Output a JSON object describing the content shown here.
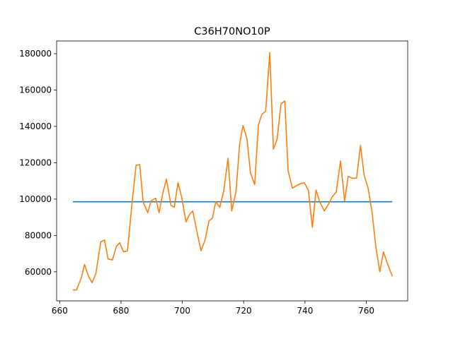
{
  "chart_data": {
    "type": "line",
    "title": "C36H70NO10P",
    "xlabel": "",
    "ylabel": "",
    "xlim": [
      659.0,
      773.5
    ],
    "ylim": [
      44000,
      187000
    ],
    "x_ticks": [
      660,
      680,
      700,
      720,
      740,
      760
    ],
    "x_tick_labels": [
      "660",
      "680",
      "700",
      "720",
      "740",
      "760"
    ],
    "y_ticks": [
      60000,
      80000,
      100000,
      120000,
      140000,
      160000,
      180000
    ],
    "y_tick_labels": [
      "60000",
      "80000",
      "100000",
      "120000",
      "140000",
      "160000",
      "180000"
    ],
    "grid": false,
    "series": [
      {
        "color": "#1f77b4",
        "x": [
          664.3,
          768.5
        ],
        "y": [
          98500,
          98500
        ]
      },
      {
        "color": "#ff7f0e",
        "x": [
          664.3,
          665.5,
          667.2,
          668.1,
          669.4,
          670.6,
          671.8,
          673.4,
          674.6,
          675.8,
          677.2,
          678.5,
          679.6,
          680.8,
          682.1,
          683.6,
          684.9,
          686.1,
          687.2,
          688.7,
          689.8,
          691.3,
          692.4,
          693.6,
          694.8,
          696.3,
          697.4,
          698.6,
          699.8,
          701.2,
          702.3,
          703.4,
          704.9,
          706.1,
          707.4,
          708.7,
          709.8,
          710.9,
          712.2,
          713.5,
          714.9,
          716.1,
          717.5,
          718.7,
          719.8,
          721.1,
          722.2,
          723.6,
          724.8,
          725.9,
          727.2,
          728.5,
          729.7,
          730.9,
          732.2,
          733.4,
          734.5,
          735.9,
          737.3,
          738.6,
          739.8,
          741.1,
          742.4,
          743.6,
          744.8,
          746.3,
          747.6,
          748.8,
          750.2,
          751.6,
          752.9,
          754.1,
          755.4,
          756.8,
          758.1,
          759.3,
          760.6,
          761.9,
          763.1,
          764.4,
          765.6,
          766.9,
          768.5
        ],
        "y": [
          50000,
          50000,
          57500,
          64000,
          57500,
          54000,
          59000,
          76500,
          77500,
          67000,
          66500,
          74000,
          76000,
          71000,
          71500,
          98000,
          118500,
          119000,
          98500,
          92500,
          99000,
          100500,
          92500,
          103000,
          111000,
          96500,
          95500,
          109000,
          101000,
          87500,
          91500,
          93500,
          81000,
          71500,
          77500,
          88000,
          89500,
          98500,
          95500,
          104500,
          122500,
          93500,
          104000,
          130500,
          140500,
          133000,
          114500,
          108000,
          140500,
          146500,
          148500,
          180500,
          127500,
          133000,
          152500,
          154000,
          115500,
          106000,
          107500,
          108500,
          109000,
          105000,
          84500,
          105000,
          98500,
          93500,
          97000,
          101000,
          104000,
          121000,
          99000,
          112500,
          111500,
          111500,
          129500,
          113000,
          106000,
          92500,
          74000,
          60000,
          71000,
          64500,
          57500
        ]
      }
    ]
  }
}
